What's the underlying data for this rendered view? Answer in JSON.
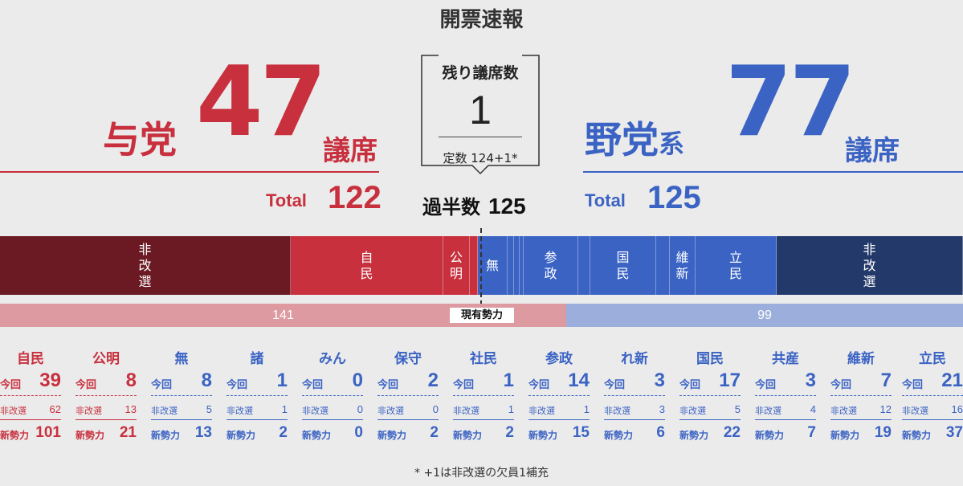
{
  "title": "開票速報",
  "ruling": {
    "label": "与党",
    "seats": "47",
    "unit": "議席",
    "total_label": "Total",
    "total": "122",
    "color": "#c8303e"
  },
  "opposition": {
    "label": "野党",
    "label_sub": "系",
    "seats": "77",
    "unit": "議席",
    "total_label": "Total",
    "total": "125",
    "color": "#3b63c4"
  },
  "remaining": {
    "title": "残り議席数",
    "value": "1",
    "teisu": "定数 124+1*"
  },
  "majority": {
    "label": "過半数",
    "value": "125"
  },
  "seat_bar": [
    {
      "label": "非改選",
      "color": "#6b1a24"
    },
    {
      "label": "自民",
      "color": "#c8303e"
    },
    {
      "label": "公明",
      "color": "#c8303e"
    },
    {
      "label": "",
      "color": "#c8303e"
    },
    {
      "label": "無",
      "color": "#3b63c4"
    },
    {
      "label": "",
      "color": "#3b63c4"
    },
    {
      "label": "",
      "color": "#3b63c4"
    },
    {
      "label": "",
      "color": "#3b63c4"
    },
    {
      "label": "参政",
      "color": "#3b63c4"
    },
    {
      "label": "",
      "color": "#3b63c4"
    },
    {
      "label": "国民",
      "color": "#3b63c4"
    },
    {
      "label": "",
      "color": "#3b63c4"
    },
    {
      "label": "維新",
      "color": "#3b63c4"
    },
    {
      "label": "立民",
      "color": "#3b63c4"
    },
    {
      "label": "非改選",
      "color": "#23396a"
    }
  ],
  "current": {
    "label": "現有勢力",
    "ruling": "141",
    "opposition": "99"
  },
  "labels": {
    "konkai": "今回",
    "hikaisen": "非改選",
    "shinseiryoku": "新勢力"
  },
  "parties": [
    {
      "name": "自民",
      "konkai": "39",
      "hikaisen": "62",
      "shin": "101",
      "side": "red"
    },
    {
      "name": "公明",
      "konkai": "8",
      "hikaisen": "13",
      "shin": "21",
      "side": "red"
    },
    {
      "name": "無",
      "konkai": "8",
      "hikaisen": "5",
      "shin": "13",
      "side": "blue"
    },
    {
      "name": "諸",
      "konkai": "1",
      "hikaisen": "1",
      "shin": "2",
      "side": "blue"
    },
    {
      "name": "みん",
      "konkai": "0",
      "hikaisen": "0",
      "shin": "0",
      "side": "blue"
    },
    {
      "name": "保守",
      "konkai": "2",
      "hikaisen": "0",
      "shin": "2",
      "side": "blue"
    },
    {
      "name": "社民",
      "konkai": "1",
      "hikaisen": "1",
      "shin": "2",
      "side": "blue"
    },
    {
      "name": "参政",
      "konkai": "14",
      "hikaisen": "1",
      "shin": "15",
      "side": "blue"
    },
    {
      "name": "れ新",
      "konkai": "3",
      "hikaisen": "3",
      "shin": "6",
      "side": "blue"
    },
    {
      "name": "国民",
      "konkai": "17",
      "hikaisen": "5",
      "shin": "22",
      "side": "blue"
    },
    {
      "name": "共産",
      "konkai": "3",
      "hikaisen": "4",
      "shin": "7",
      "side": "blue"
    },
    {
      "name": "維新",
      "konkai": "7",
      "hikaisen": "12",
      "shin": "19",
      "side": "blue"
    },
    {
      "name": "立民",
      "konkai": "21",
      "hikaisen": "16",
      "shin": "37",
      "side": "blue"
    }
  ],
  "footnote": "* +1は非改選の欠員1補充"
}
